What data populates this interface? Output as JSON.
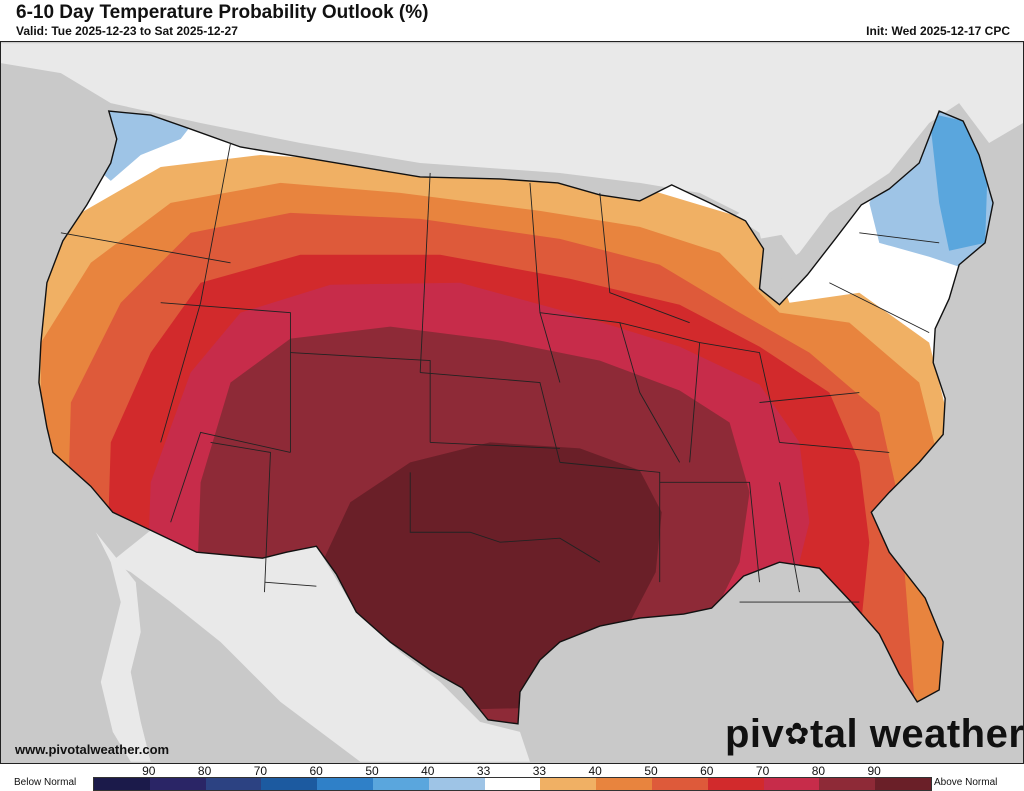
{
  "header": {
    "title": "6-10 Day Temperature Probability Outlook (%)",
    "valid": "Valid: Tue 2025-12-23 to Sat 2025-12-27",
    "init": "Init: Wed 2025-12-17 CPC"
  },
  "footer": {
    "website": "www.pivotalweather.com",
    "brand_left": "piv",
    "brand_right": "tal weather"
  },
  "legend": {
    "below_label": "Below Normal",
    "above_label": "Above Normal",
    "tick_labels": [
      "90",
      "80",
      "70",
      "60",
      "50",
      "40",
      "33",
      "33",
      "40",
      "50",
      "60",
      "70",
      "80",
      "90"
    ],
    "colors": [
      "#1b1a4a",
      "#2a2566",
      "#2c4282",
      "#1c5aa0",
      "#2f80c8",
      "#5aa6dd",
      "#9ec4e6",
      "#ffffff",
      "#f0b064",
      "#e8843e",
      "#de5a3a",
      "#d22a2c",
      "#c72c4a",
      "#8e2a37",
      "#6a1f28"
    ]
  },
  "map": {
    "background_color": "#c9c9c9",
    "land_color": "#e9e9e9",
    "water_color": "#c9c9c9",
    "category_colors": {
      "below_40": "#5aa6dd",
      "below_33": "#9ec4e6",
      "near_normal": "#ffffff",
      "above_33": "#f0b064",
      "above_40": "#e8843e",
      "above_50": "#de5a3a",
      "above_60": "#d22a2c",
      "above_70": "#c72c4a",
      "above_80": "#8e2a37",
      "above_90": "#6a1f28"
    }
  }
}
